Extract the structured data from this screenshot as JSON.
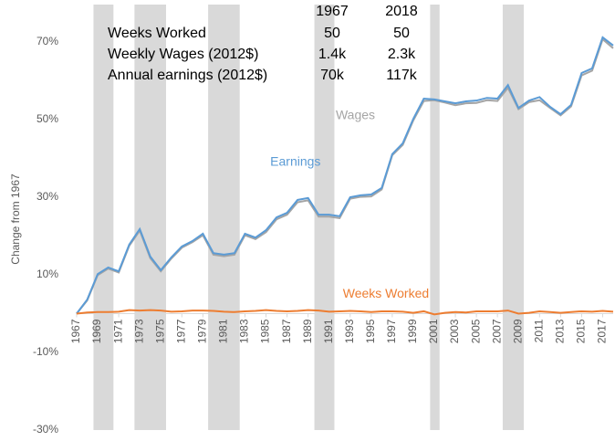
{
  "chart_data": {
    "type": "line",
    "y_label": "Change from 1967",
    "x": [
      1967,
      1968,
      1969,
      1970,
      1971,
      1972,
      1973,
      1974,
      1975,
      1976,
      1977,
      1978,
      1979,
      1980,
      1981,
      1982,
      1983,
      1984,
      1985,
      1986,
      1987,
      1988,
      1989,
      1990,
      1991,
      1992,
      1993,
      1994,
      1995,
      1996,
      1997,
      1998,
      1999,
      2000,
      2001,
      2002,
      2003,
      2004,
      2005,
      2006,
      2007,
      2008,
      2009,
      2010,
      2011,
      2012,
      2013,
      2014,
      2015,
      2016,
      2017,
      2018
    ],
    "xlim": [
      1967,
      2018
    ],
    "xticks": [
      1967,
      1969,
      1971,
      1973,
      1975,
      1977,
      1979,
      1981,
      1983,
      1985,
      1987,
      1989,
      1991,
      1993,
      1995,
      1997,
      1999,
      2001,
      2003,
      2005,
      2007,
      2009,
      2011,
      2013,
      2015,
      2017
    ],
    "ylim": [
      -30,
      80
    ],
    "yticks": [
      {
        "value": -30,
        "label": "-30%"
      },
      {
        "value": -10,
        "label": "-10%"
      },
      {
        "value": 10,
        "label": "10%"
      },
      {
        "value": 30,
        "label": "30%"
      },
      {
        "value": 50,
        "label": "50%"
      },
      {
        "value": 70,
        "label": "70%"
      }
    ],
    "shaded_periods": [
      [
        1968.6,
        1970.5
      ],
      [
        1972.5,
        1975.5
      ],
      [
        1979.5,
        1982.5
      ],
      [
        1989.6,
        1991.5
      ],
      [
        2000.6,
        2001.5
      ],
      [
        2007.5,
        2009.5
      ]
    ],
    "shade_color": "#d9d9d9",
    "series": [
      {
        "name": "Wages",
        "color": "#a5a5a5",
        "label_at": [
          1993.5,
          51
        ],
        "values": [
          0,
          3.4,
          9.9,
          11.6,
          10.6,
          17.5,
          21.4,
          14.3,
          10.9,
          14.2,
          17.0,
          18.4,
          20.2,
          15.2,
          14.8,
          15.2,
          20.2,
          19.2,
          21.0,
          24.3,
          25.5,
          28.7,
          29.2,
          25.0,
          25.0,
          24.6,
          29.6,
          30.1,
          30.2,
          32.0,
          40.8,
          43.5,
          49.8,
          54.8,
          55.0,
          54.4,
          53.7,
          54.2,
          54.3,
          55.0,
          54.8,
          58.2,
          52.7,
          54.5,
          55.0,
          53.0,
          51.1,
          53.4,
          61.4,
          62.6,
          70.7,
          68.4
        ]
      },
      {
        "name": "Earnings",
        "color": "#5b9bd5",
        "label_at": [
          1987.8,
          39
        ],
        "values": [
          0,
          3.6,
          10.2,
          11.9,
          10.9,
          17.8,
          21.8,
          14.7,
          11.2,
          14.5,
          17.3,
          18.7,
          20.6,
          15.6,
          15.2,
          15.6,
          20.6,
          19.6,
          21.5,
          24.8,
          26.0,
          29.3,
          29.8,
          25.5,
          25.5,
          25.1,
          30.0,
          30.5,
          30.7,
          32.4,
          41.1,
          43.9,
          50.2,
          55.4,
          55.2,
          54.7,
          54.2,
          54.7,
          54.9,
          55.6,
          55.4,
          58.9,
          53.0,
          54.9,
          55.8,
          53.3,
          51.4,
          53.8,
          62.0,
          63.2,
          71.2,
          69.1
        ]
      },
      {
        "name": "Weeks Worked",
        "color": "#ed7d31",
        "label_at": [
          1996.4,
          5
        ],
        "values": [
          0,
          0.3,
          0.4,
          0.4,
          0.5,
          0.9,
          0.8,
          0.9,
          0.8,
          0.5,
          0.6,
          0.8,
          0.8,
          0.7,
          0.5,
          0.4,
          0.6,
          0.7,
          0.9,
          0.7,
          0.6,
          0.7,
          0.9,
          0.8,
          0.5,
          0.6,
          0.7,
          0.6,
          0.4,
          0.6,
          0.6,
          0.5,
          0.2,
          0.6,
          -0.2,
          0.2,
          0.4,
          0.3,
          0.6,
          0.6,
          0.6,
          0.8,
          0.0,
          0.2,
          0.6,
          0.4,
          0.2,
          0.4,
          0.6,
          0.5,
          0.7,
          0.5
        ]
      }
    ],
    "table": {
      "columns": [
        "1967",
        "2018"
      ],
      "rows": [
        {
          "label": "Weeks Worked",
          "cells": [
            "50",
            "50"
          ]
        },
        {
          "label": "Weekly Wages (2012$)",
          "cells": [
            "1.4k",
            "2.3k"
          ]
        },
        {
          "label": "Annual earnings (2012$)",
          "cells": [
            "70k",
            "117k"
          ]
        }
      ]
    }
  }
}
